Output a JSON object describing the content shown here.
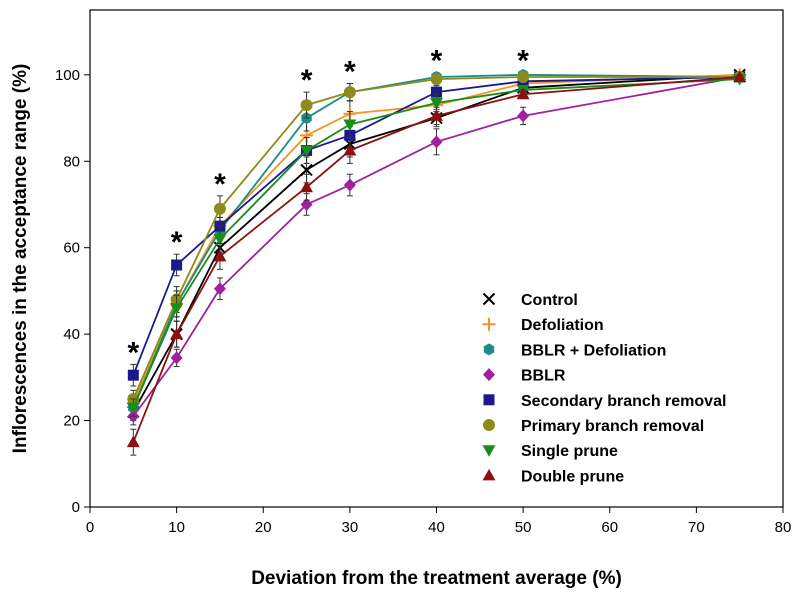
{
  "chart_data": {
    "type": "line",
    "title": "",
    "xlabel": "Deviation from the treatment average (%)",
    "ylabel": "Inflorescences in the acceptance range (%)",
    "xlim": [
      0,
      80
    ],
    "ylim": [
      0,
      115
    ],
    "x_ticks": [
      "0",
      "10",
      "20",
      "30",
      "40",
      "50",
      "60",
      "70",
      "80"
    ],
    "y_ticks": [
      "0",
      "20",
      "40",
      "60",
      "80",
      "100"
    ],
    "x_tick_values": [
      0,
      10,
      20,
      30,
      40,
      50,
      60,
      70,
      80
    ],
    "y_tick_values": [
      0,
      20,
      40,
      60,
      80,
      100
    ],
    "grid": false,
    "legend_position": "bottom-right",
    "significance_x": [
      5,
      10,
      15,
      25,
      30,
      40,
      50
    ],
    "significance_mark": "*",
    "x": [
      5,
      10,
      15,
      25,
      30,
      40,
      50,
      75
    ],
    "series": [
      {
        "name": "Control",
        "marker": "x",
        "color": "#000000",
        "values": [
          22,
          40,
          60,
          78,
          84,
          90,
          97,
          100
        ],
        "err": [
          2,
          3,
          3,
          3,
          3,
          2,
          1,
          0.5
        ]
      },
      {
        "name": "Defoliation",
        "marker": "plus",
        "color": "#f7941d",
        "values": [
          24,
          47,
          65,
          86,
          91,
          93,
          98,
          100
        ],
        "err": [
          2,
          3,
          3,
          3,
          3,
          2,
          1,
          0.5
        ]
      },
      {
        "name": "BBLR + Defoliation",
        "marker": "hexagon",
        "color": "#1b8b8b",
        "values": [
          23,
          47,
          64,
          90,
          96,
          99.5,
          100,
          99.5
        ],
        "err": [
          2,
          3,
          3,
          3,
          2,
          1,
          0.5,
          0.5
        ]
      },
      {
        "name": "BBLR",
        "marker": "diamond",
        "color": "#a020a0",
        "values": [
          21,
          34.5,
          50.5,
          70,
          74.5,
          84.5,
          90.5,
          99.5
        ],
        "err": [
          2,
          2,
          2.5,
          2.5,
          2.5,
          3,
          2,
          0.5
        ]
      },
      {
        "name": "Secondary branch removal",
        "marker": "square",
        "color": "#1a1a8c",
        "values": [
          30.5,
          56,
          65,
          82.5,
          86,
          96,
          98.5,
          99.5
        ],
        "err": [
          2.5,
          2.5,
          3,
          3,
          3,
          1.5,
          1,
          0.5
        ]
      },
      {
        "name": "Primary branch removal",
        "marker": "circle",
        "color": "#8c8c1a",
        "values": [
          25,
          48,
          69,
          93,
          96,
          99,
          99.5,
          99.5
        ],
        "err": [
          2,
          3,
          3,
          3,
          2,
          1,
          0.5,
          0.5
        ]
      },
      {
        "name": "Single prune",
        "marker": "triangle-down",
        "color": "#1a8c1a",
        "values": [
          23,
          46,
          62,
          82.5,
          88.5,
          93.5,
          96.5,
          99
        ],
        "err": [
          2,
          3,
          3,
          3,
          3,
          2,
          1,
          0.5
        ]
      },
      {
        "name": "Double prune",
        "marker": "triangle-up",
        "color": "#8c1010",
        "values": [
          15,
          40,
          58,
          74,
          82.5,
          90.5,
          95.5,
          99.5
        ],
        "err": [
          3,
          3,
          3,
          3,
          3,
          2,
          1,
          0.5
        ]
      }
    ]
  }
}
